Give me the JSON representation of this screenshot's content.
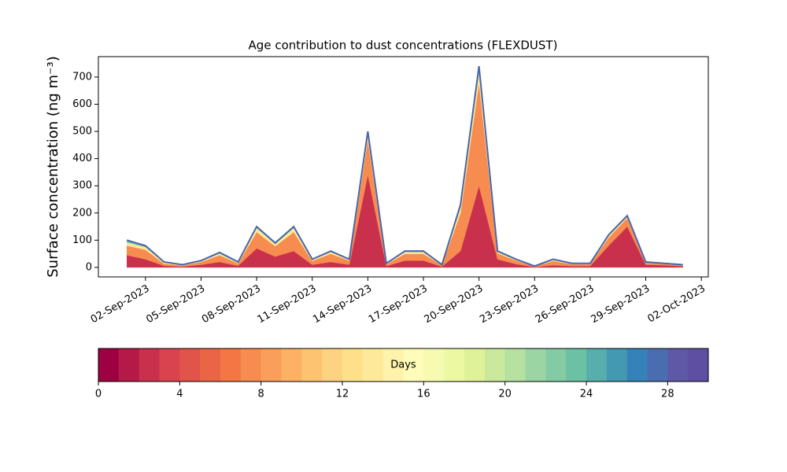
{
  "chart_data": {
    "type": "stacked_area",
    "title": "Age contribution to dust concentrations (FLEXDUST)",
    "y_label": "Surface concentration (ng m⁻³)",
    "x": [
      "2023-09-01",
      "2023-09-02",
      "2023-09-03",
      "2023-09-04",
      "2023-09-05",
      "2023-09-06",
      "2023-09-07",
      "2023-09-08",
      "2023-09-09",
      "2023-09-10",
      "2023-09-11",
      "2023-09-12",
      "2023-09-13",
      "2023-09-14",
      "2023-09-15",
      "2023-09-16",
      "2023-09-17",
      "2023-09-18",
      "2023-09-19",
      "2023-09-20",
      "2023-09-21",
      "2023-09-22",
      "2023-09-23",
      "2023-09-24",
      "2023-09-25",
      "2023-09-26",
      "2023-09-27",
      "2023-09-28",
      "2023-09-29",
      "2023-09-30",
      "2023-10-01"
    ],
    "series": [
      {
        "color": "#c9304c",
        "values": [
          45,
          30,
          6,
          3,
          10,
          20,
          6,
          70,
          40,
          60,
          10,
          20,
          10,
          340,
          5,
          25,
          25,
          3,
          60,
          300,
          30,
          12,
          2,
          8,
          5,
          5,
          80,
          150,
          10,
          8,
          4
        ]
      },
      {
        "color": "#f78c51",
        "values": [
          35,
          35,
          8,
          4,
          10,
          25,
          9,
          60,
          38,
          70,
          14,
          30,
          15,
          130,
          7,
          25,
          25,
          5,
          140,
          380,
          22,
          13,
          2,
          16,
          7,
          7,
          30,
          32,
          7,
          5,
          4
        ]
      },
      {
        "color": "#fee99a",
        "values": [
          12,
          10,
          4,
          2,
          3,
          6,
          3,
          15,
          8,
          15,
          4,
          7,
          3,
          20,
          2,
          7,
          7,
          1,
          20,
          40,
          5,
          3,
          1,
          4,
          2,
          2,
          7,
          5,
          2,
          1,
          1
        ]
      },
      {
        "color": "#6cc1a5",
        "values": [
          8,
          5,
          2,
          1,
          2,
          4,
          2,
          5,
          4,
          5,
          2,
          3,
          2,
          10,
          1,
          3,
          3,
          1,
          10,
          20,
          3,
          2,
          0,
          2,
          1,
          1,
          3,
          3,
          1,
          1,
          1
        ]
      }
    ],
    "line_color": "#4a66ac",
    "xlim": [
      "2023-08-30T11:00:00Z",
      "2023-10-02T09:00:00Z"
    ],
    "xticks": [
      {
        "value": "2023-09-02",
        "label": "02-Sep-2023"
      },
      {
        "value": "2023-09-05",
        "label": "05-Sep-2023"
      },
      {
        "value": "2023-09-08",
        "label": "08-Sep-2023"
      },
      {
        "value": "2023-09-11",
        "label": "11-Sep-2023"
      },
      {
        "value": "2023-09-14",
        "label": "14-Sep-2023"
      },
      {
        "value": "2023-09-17",
        "label": "17-Sep-2023"
      },
      {
        "value": "2023-09-20",
        "label": "20-Sep-2023"
      },
      {
        "value": "2023-09-23",
        "label": "23-Sep-2023"
      },
      {
        "value": "2023-09-26",
        "label": "26-Sep-2023"
      },
      {
        "value": "2023-09-29",
        "label": "29-Sep-2023"
      },
      {
        "value": "2023-10-02",
        "label": "02-Oct-2023"
      }
    ],
    "ylim": [
      -35,
      775
    ],
    "yticks": [
      0,
      100,
      200,
      300,
      400,
      500,
      600,
      700
    ],
    "colorbar": {
      "label": "Days",
      "lim": [
        0,
        30
      ],
      "ticks": [
        0,
        4,
        8,
        12,
        16,
        20,
        24,
        28
      ],
      "colors": [
        "#9e0142",
        "#b41947",
        "#c9304c",
        "#d8434e",
        "#e1544a",
        "#ea6546",
        "#f47645",
        "#f78c51",
        "#fa9e5c",
        "#fdb164",
        "#fdc371",
        "#fdd283",
        "#fee08b",
        "#fee99a",
        "#fff2ab",
        "#fffbb9",
        "#f7fbb2",
        "#edf8a3",
        "#dff299",
        "#cbe99c",
        "#b5e1a1",
        "#9bd5a4",
        "#83cba4",
        "#6cc1a5",
        "#57aeac",
        "#4399b2",
        "#3582b9",
        "#4a6db0",
        "#5e58a6",
        "#5e4fa2"
      ]
    }
  }
}
